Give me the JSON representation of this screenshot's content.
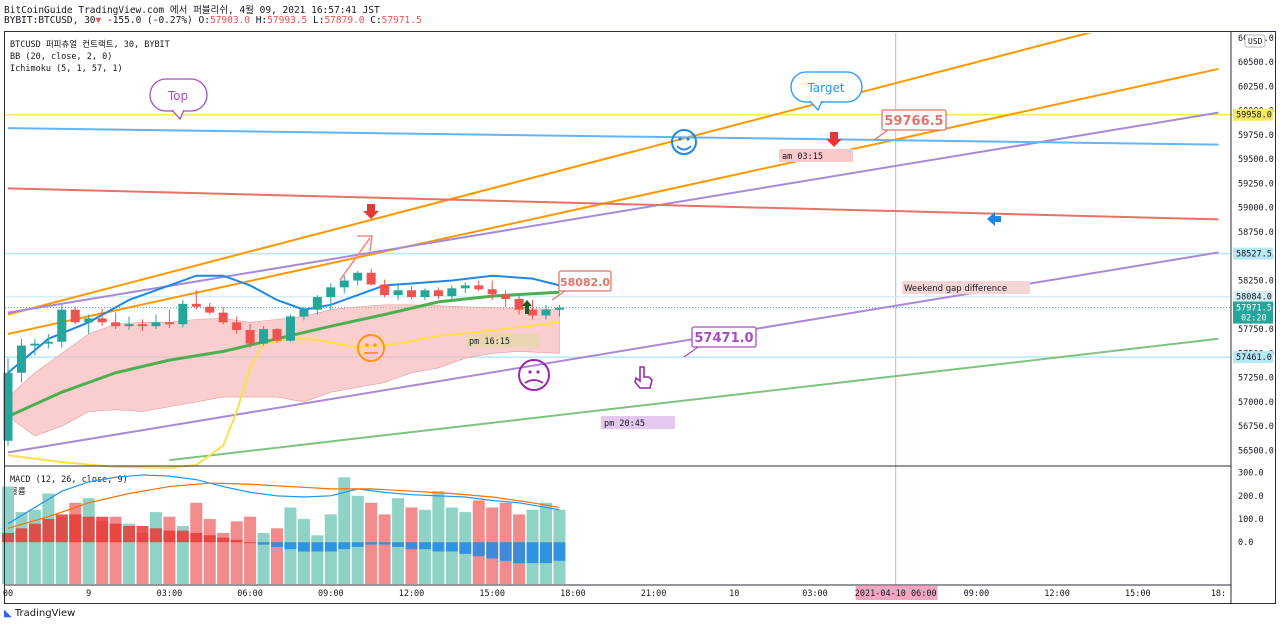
{
  "header": {
    "title": "BitCoinGuide TradingView.com 에서 퍼블리쉬, 4월 09, 2021 16:57:41 JST",
    "symbol": "BYBIT:BTCUSD, 30",
    "change_arrow": "▼",
    "change": "-155.0 (-0.27%)",
    "ohlc_open_label": "O:",
    "ohlc_open": "57903.0",
    "ohlc_high_label": "H:",
    "ohlc_high": "57993.5",
    "ohlc_low_label": "L:",
    "ohlc_low": "57879.0",
    "ohlc_close_label": "C:",
    "ohlc_close": "57971.5"
  },
  "legend": [
    "BTCUSD 퍼피츄얼 컨트랙트, 30, BYBIT",
    "BB (20, close, 2, 0)",
    "Ichimoku (5, 1, 57, 1)"
  ],
  "currency": "USD",
  "footer_brand": "TradingView",
  "colors": {
    "up": "#26a69a",
    "down": "#ef5350",
    "up_soft": "#8fd3c7",
    "down_soft": "#f28b8b",
    "accent": "#ff9800"
  },
  "chart_data": [
    {
      "type": "candlestick",
      "yrange": [
        56350,
        60800
      ],
      "y_ticks": [
        "56500.0",
        "56750.0",
        "57000.0",
        "57250.0",
        "57500.0",
        "57750.0",
        "58000.0",
        "58250.0",
        "58500.0",
        "58750.0",
        "59000.0",
        "59250.0",
        "59500.0",
        "59750.0",
        "60000.0",
        "60250.0",
        "60500.0",
        "60750.0"
      ],
      "x_ticks": [
        {
          "t": 0,
          "label": "00"
        },
        {
          "t": 6,
          "label": "9"
        },
        {
          "t": 12,
          "label": "03:00"
        },
        {
          "t": 18,
          "label": "06:00"
        },
        {
          "t": 24,
          "label": "09:00"
        },
        {
          "t": 30,
          "label": "12:00"
        },
        {
          "t": 36,
          "label": "15:00"
        },
        {
          "t": 42,
          "label": "18:00"
        },
        {
          "t": 48,
          "label": "21:00"
        },
        {
          "t": 54,
          "label": "10"
        },
        {
          "t": 60,
          "label": "03:00"
        },
        {
          "t": 66,
          "label": "06:00"
        },
        {
          "t": 72,
          "label": "09:00"
        },
        {
          "t": 78,
          "label": "12:00"
        },
        {
          "t": 84,
          "label": "15:00"
        },
        {
          "t": 90,
          "label": "18:"
        }
      ],
      "x_highlight": {
        "t": 66,
        "label": "2021-04-10  06:00"
      },
      "price_labels": [
        {
          "value": 59958.0,
          "text": "59958.0",
          "color": "#f5e663"
        },
        {
          "value": 58527.5,
          "text": "58527.5",
          "color": "#b8e8f2"
        },
        {
          "value": 58084.0,
          "text": "58084.0",
          "color": "#d6eef5"
        },
        {
          "value": 57971.5,
          "text": "57971.5",
          "sub": "02:20",
          "color": "#26a69a"
        },
        {
          "value": 57461.0,
          "text": "57461.0",
          "color": "#b8e8f2"
        }
      ],
      "candles": [
        {
          "o": 56600,
          "h": 57450,
          "l": 56550,
          "c": 57300
        },
        {
          "o": 57300,
          "h": 57650,
          "l": 57200,
          "c": 57580
        },
        {
          "o": 57580,
          "h": 57650,
          "l": 57480,
          "c": 57600
        },
        {
          "o": 57600,
          "h": 57700,
          "l": 57550,
          "c": 57620
        },
        {
          "o": 57620,
          "h": 58000,
          "l": 57560,
          "c": 57950
        },
        {
          "o": 57950,
          "h": 57980,
          "l": 57800,
          "c": 57820
        },
        {
          "o": 57820,
          "h": 57900,
          "l": 57700,
          "c": 57860
        },
        {
          "o": 57860,
          "h": 57960,
          "l": 57780,
          "c": 57820
        },
        {
          "o": 57820,
          "h": 57920,
          "l": 57750,
          "c": 57780
        },
        {
          "o": 57780,
          "h": 57880,
          "l": 57740,
          "c": 57800
        },
        {
          "o": 57800,
          "h": 57850,
          "l": 57730,
          "c": 57780
        },
        {
          "o": 57780,
          "h": 57900,
          "l": 57750,
          "c": 57820
        },
        {
          "o": 57820,
          "h": 57950,
          "l": 57760,
          "c": 57800
        },
        {
          "o": 57800,
          "h": 58050,
          "l": 57770,
          "c": 58010
        },
        {
          "o": 58010,
          "h": 58150,
          "l": 57950,
          "c": 57980
        },
        {
          "o": 57980,
          "h": 58020,
          "l": 57900,
          "c": 57920
        },
        {
          "o": 57920,
          "h": 57980,
          "l": 57800,
          "c": 57820
        },
        {
          "o": 57820,
          "h": 57880,
          "l": 57700,
          "c": 57740
        },
        {
          "o": 57740,
          "h": 57800,
          "l": 57560,
          "c": 57600
        },
        {
          "o": 57600,
          "h": 57780,
          "l": 57580,
          "c": 57750
        },
        {
          "o": 57750,
          "h": 57760,
          "l": 57610,
          "c": 57630
        },
        {
          "o": 57630,
          "h": 57900,
          "l": 57620,
          "c": 57880
        },
        {
          "o": 57880,
          "h": 57980,
          "l": 57840,
          "c": 57950
        },
        {
          "o": 57950,
          "h": 58100,
          "l": 57900,
          "c": 58080
        },
        {
          "o": 58080,
          "h": 58220,
          "l": 57950,
          "c": 58180
        },
        {
          "o": 58180,
          "h": 58300,
          "l": 58120,
          "c": 58250
        },
        {
          "o": 58250,
          "h": 58350,
          "l": 58200,
          "c": 58330
        },
        {
          "o": 58330,
          "h": 58370,
          "l": 58200,
          "c": 58210
        },
        {
          "o": 58210,
          "h": 58260,
          "l": 58080,
          "c": 58100
        },
        {
          "o": 58100,
          "h": 58200,
          "l": 58050,
          "c": 58150
        },
        {
          "o": 58150,
          "h": 58190,
          "l": 58060,
          "c": 58080
        },
        {
          "o": 58080,
          "h": 58170,
          "l": 58050,
          "c": 58150
        },
        {
          "o": 58150,
          "h": 58180,
          "l": 58060,
          "c": 58090
        },
        {
          "o": 58090,
          "h": 58200,
          "l": 58060,
          "c": 58170
        },
        {
          "o": 58170,
          "h": 58230,
          "l": 58120,
          "c": 58200
        },
        {
          "o": 58200,
          "h": 58250,
          "l": 58140,
          "c": 58160
        },
        {
          "o": 58160,
          "h": 58250,
          "l": 58050,
          "c": 58110
        },
        {
          "o": 58110,
          "h": 58150,
          "l": 57980,
          "c": 58060
        },
        {
          "o": 58060,
          "h": 58100,
          "l": 57900,
          "c": 57950
        },
        {
          "o": 57950,
          "h": 58050,
          "l": 57850,
          "c": 57890
        },
        {
          "o": 57890,
          "h": 58000,
          "l": 57850,
          "c": 57950
        },
        {
          "o": 57950,
          "h": 58000,
          "l": 57880,
          "c": 57970
        }
      ],
      "bb_upper": [
        [
          0,
          57300
        ],
        [
          3,
          57650
        ],
        [
          6,
          57820
        ],
        [
          9,
          58050
        ],
        [
          12,
          58200
        ],
        [
          14,
          58300
        ],
        [
          16,
          58300
        ],
        [
          18,
          58200
        ],
        [
          20,
          58050
        ],
        [
          22,
          57950
        ],
        [
          24,
          58000
        ],
        [
          26,
          58100
        ],
        [
          28,
          58200
        ],
        [
          30,
          58220
        ],
        [
          33,
          58250
        ],
        [
          36,
          58300
        ],
        [
          39,
          58270
        ],
        [
          41,
          58200
        ]
      ],
      "bb_mid": [
        [
          0,
          56850
        ],
        [
          4,
          57100
        ],
        [
          8,
          57300
        ],
        [
          12,
          57430
        ],
        [
          16,
          57520
        ],
        [
          20,
          57650
        ],
        [
          24,
          57780
        ],
        [
          28,
          57900
        ],
        [
          32,
          58030
        ],
        [
          36,
          58090
        ],
        [
          41,
          58130
        ]
      ],
      "ichimoku_conv": [
        [
          0,
          56450
        ],
        [
          4,
          56380
        ],
        [
          8,
          56330
        ],
        [
          12,
          56320
        ],
        [
          14,
          56350
        ],
        [
          16,
          56550
        ],
        [
          17,
          56900
        ],
        [
          18,
          57350
        ],
        [
          19,
          57600
        ],
        [
          21,
          57650
        ],
        [
          23,
          57640
        ],
        [
          26,
          57560
        ],
        [
          29,
          57600
        ],
        [
          32,
          57680
        ],
        [
          35,
          57720
        ],
        [
          38,
          57770
        ],
        [
          41,
          57820
        ]
      ],
      "cloud_top": [
        [
          0,
          57050
        ],
        [
          2,
          57300
        ],
        [
          4,
          57500
        ],
        [
          6,
          57700
        ],
        [
          8,
          57800
        ],
        [
          10,
          57820
        ],
        [
          12,
          57820
        ],
        [
          14,
          57850
        ],
        [
          16,
          57860
        ],
        [
          18,
          57820
        ],
        [
          20,
          57850
        ],
        [
          22,
          57880
        ],
        [
          24,
          57950
        ],
        [
          26,
          57980
        ],
        [
          28,
          58000
        ],
        [
          30,
          58000
        ],
        [
          32,
          57990
        ],
        [
          34,
          57980
        ],
        [
          36,
          57970
        ],
        [
          39,
          57960
        ],
        [
          41,
          57950
        ]
      ],
      "cloud_bottom": [
        [
          0,
          56850
        ],
        [
          2,
          56650
        ],
        [
          4,
          56750
        ],
        [
          6,
          56900
        ],
        [
          8,
          56920
        ],
        [
          10,
          56900
        ],
        [
          12,
          56950
        ],
        [
          14,
          57000
        ],
        [
          16,
          57050
        ],
        [
          18,
          57050
        ],
        [
          20,
          57050
        ],
        [
          22,
          57000
        ],
        [
          24,
          57100
        ],
        [
          26,
          57150
        ],
        [
          28,
          57200
        ],
        [
          30,
          57300
        ],
        [
          32,
          57350
        ],
        [
          34,
          57450
        ],
        [
          36,
          57500
        ],
        [
          38,
          57520
        ],
        [
          41,
          57500
        ]
      ],
      "lines": [
        {
          "name": "orange-trend-upper",
          "color": "#ff9800",
          "p1": [
            0,
            57900
          ],
          "p2": [
            90,
            61150
          ]
        },
        {
          "name": "orange-trend-lower",
          "color": "#ff9800",
          "p1": [
            0,
            57700
          ],
          "p2": [
            90,
            60430
          ]
        },
        {
          "name": "purple-trend-upper",
          "color": "#a889d6",
          "p1": [
            0,
            57920
          ],
          "p2": [
            90,
            59980
          ]
        },
        {
          "name": "purple-trend-lower",
          "color": "#a889d6",
          "p1": [
            0,
            56480
          ],
          "p2": [
            90,
            58540
          ]
        },
        {
          "name": "green-trend",
          "color": "#7cc47f",
          "p1": [
            12,
            56400
          ],
          "p2": [
            90,
            57650
          ]
        },
        {
          "name": "blue-trend",
          "color": "#64b5f6",
          "p1": [
            0,
            59820
          ],
          "p2": [
            90,
            59650
          ]
        },
        {
          "name": "red-trend",
          "color": "#e57368",
          "p1": [
            0,
            59200
          ],
          "p2": [
            90,
            58880
          ]
        }
      ],
      "hlines": [
        {
          "value": 59958.0,
          "color": "#f5e663"
        },
        {
          "value": 58527.5,
          "color": "#b8e8f2"
        },
        {
          "value": 58084.0,
          "color": "#d6eef5"
        },
        {
          "value": 57461.0,
          "color": "#b8e8f2"
        }
      ],
      "annotations": [
        {
          "text": "Top",
          "kind": "bubble",
          "color": "#a64dbf"
        },
        {
          "text": "Target",
          "kind": "bubble",
          "color": "#2196f3"
        },
        {
          "text": "59766.5",
          "kind": "price-tag",
          "color": "#e57368"
        },
        {
          "text": "58082.0",
          "kind": "price-tag",
          "color": "#e57368"
        },
        {
          "text": "57471.0",
          "kind": "price-tag",
          "color": "#a64dbf"
        },
        {
          "text": "am 03:15",
          "kind": "time-note",
          "color": "#f8c9c9"
        },
        {
          "text": "pm 16:15",
          "kind": "time-note",
          "color": "#e8d7b0"
        },
        {
          "text": "pm 20:45",
          "kind": "time-note",
          "color": "#e3c9ef"
        },
        {
          "text": "Weekend gap difference",
          "kind": "note",
          "color": "#f5d6d6"
        }
      ]
    },
    {
      "type": "bar",
      "title": "MACD (12, 26, close, 9)",
      "subtitle": "볼륨",
      "yrange": [
        -180,
        320
      ],
      "y_ticks": [
        "0.0",
        "100.0",
        "200.0",
        "300.0"
      ],
      "volume": [
        240,
        130,
        140,
        210,
        110,
        170,
        190,
        90,
        110,
        80,
        40,
        130,
        110,
        70,
        170,
        100,
        40,
        90,
        110,
        40,
        60,
        150,
        100,
        30,
        120,
        280,
        200,
        170,
        120,
        190,
        150,
        140,
        220,
        150,
        130,
        180,
        150,
        170,
        120,
        140,
        170,
        140
      ],
      "volume_dir": [
        1,
        1,
        1,
        1,
        1,
        -1,
        1,
        -1,
        -1,
        1,
        -1,
        1,
        -1,
        1,
        -1,
        -1,
        -1,
        -1,
        -1,
        1,
        -1,
        1,
        1,
        1,
        1,
        1,
        1,
        -1,
        -1,
        1,
        -1,
        1,
        1,
        1,
        1,
        -1,
        -1,
        -1,
        -1,
        1,
        1,
        1
      ],
      "hist": [
        40,
        60,
        80,
        100,
        120,
        120,
        110,
        110,
        80,
        70,
        70,
        60,
        50,
        50,
        40,
        30,
        20,
        10,
        0,
        -10,
        -20,
        -30,
        -40,
        -40,
        -40,
        -30,
        -20,
        -10,
        -10,
        -20,
        -30,
        -30,
        -40,
        -40,
        -50,
        -60,
        -70,
        -80,
        -90,
        -90,
        -90,
        -80
      ],
      "macd": [
        [
          0,
          80
        ],
        [
          2,
          150
        ],
        [
          4,
          220
        ],
        [
          6,
          260
        ],
        [
          8,
          280
        ],
        [
          10,
          290
        ],
        [
          12,
          285
        ],
        [
          14,
          270
        ],
        [
          16,
          240
        ],
        [
          18,
          215
        ],
        [
          20,
          200
        ],
        [
          22,
          195
        ],
        [
          24,
          200
        ],
        [
          26,
          230
        ],
        [
          28,
          215
        ],
        [
          30,
          205
        ],
        [
          32,
          200
        ],
        [
          34,
          195
        ],
        [
          36,
          180
        ],
        [
          38,
          170
        ],
        [
          40,
          150
        ],
        [
          41,
          140
        ]
      ],
      "signal": [
        [
          0,
          60
        ],
        [
          3,
          110
        ],
        [
          6,
          170
        ],
        [
          9,
          210
        ],
        [
          12,
          240
        ],
        [
          15,
          255
        ],
        [
          18,
          250
        ],
        [
          21,
          240
        ],
        [
          24,
          230
        ],
        [
          27,
          230
        ],
        [
          30,
          220
        ],
        [
          33,
          210
        ],
        [
          36,
          195
        ],
        [
          39,
          170
        ],
        [
          41,
          150
        ]
      ]
    }
  ]
}
